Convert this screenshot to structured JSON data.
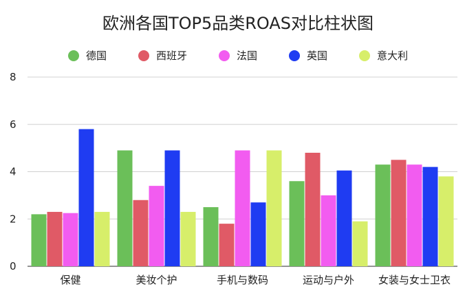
{
  "chart_data": {
    "type": "bar",
    "title": "欧洲各国TOP5品类ROAS对比柱状图",
    "categories": [
      "保健",
      "美妆个护",
      "手机与数码",
      "运动与户外",
      "女装与女士卫衣"
    ],
    "series": [
      {
        "name": "德国",
        "color": "#6bbf59",
        "values": [
          2.2,
          4.9,
          2.5,
          3.6,
          4.3
        ]
      },
      {
        "name": "西班牙",
        "color": "#e05a66",
        "values": [
          2.3,
          2.8,
          1.8,
          4.8,
          4.5
        ]
      },
      {
        "name": "法国",
        "color": "#f25cf0",
        "values": [
          2.25,
          3.4,
          4.9,
          3.0,
          4.3
        ]
      },
      {
        "name": "英国",
        "color": "#1f3cf2",
        "values": [
          5.8,
          4.9,
          2.7,
          4.05,
          4.2
        ]
      },
      {
        "name": "意大利",
        "color": "#d7ee6a",
        "values": [
          2.3,
          2.3,
          4.9,
          1.9,
          3.8
        ]
      }
    ],
    "ylim": [
      0,
      8
    ],
    "yticks": [
      0,
      2,
      4,
      6,
      8
    ],
    "grid": true,
    "legend_position": "top"
  }
}
